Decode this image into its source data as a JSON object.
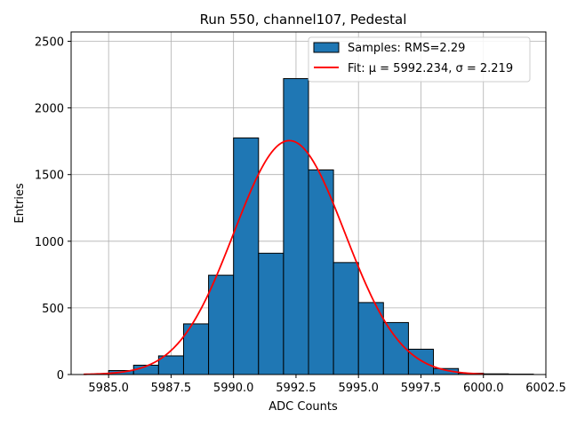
{
  "chart_data": {
    "type": "bar",
    "title": "Run 550, channel107, Pedestal",
    "xlabel": "ADC Counts",
    "ylabel": "Entries",
    "xlim": [
      5983.5,
      6002.5
    ],
    "ylim": [
      0,
      2570
    ],
    "x_ticks": [
      5985.0,
      5987.5,
      5990.0,
      5992.5,
      5995.0,
      5997.5,
      6000.0,
      6002.5
    ],
    "x_tick_labels": [
      "5985.0",
      "5987.5",
      "5990.0",
      "5992.5",
      "5995.0",
      "5997.5",
      "6000.0",
      "6002.5"
    ],
    "y_ticks": [
      0,
      500,
      1000,
      1500,
      2000,
      2500
    ],
    "y_tick_labels": [
      "0",
      "500",
      "1000",
      "1500",
      "2000",
      "2500"
    ],
    "grid": true,
    "legend_position": "top-right",
    "histogram": {
      "name": "Samples: RMS=2.29",
      "color": "#1f77b4",
      "edge_color": "#000000",
      "bin_edges": [
        5985,
        5986,
        5987,
        5988,
        5989,
        5990,
        5991,
        5992,
        5993,
        5994,
        5995,
        5996,
        5997,
        5998,
        5999,
        6000,
        6001,
        6002
      ],
      "counts": [
        30,
        70,
        140,
        380,
        745,
        1775,
        910,
        2220,
        1535,
        840,
        540,
        390,
        190,
        45,
        10,
        5,
        3
      ]
    },
    "fit": {
      "name": "Fit: μ = 5992.234, σ = 2.219",
      "color": "#ff0000",
      "mu": 5992.234,
      "sigma": 2.219,
      "amplitude": 1755,
      "x_range": [
        5984,
        6000
      ]
    },
    "legend": {
      "hist_label": "Samples: RMS=2.29",
      "fit_label": "Fit: μ = 5992.234, σ = 2.219"
    }
  }
}
